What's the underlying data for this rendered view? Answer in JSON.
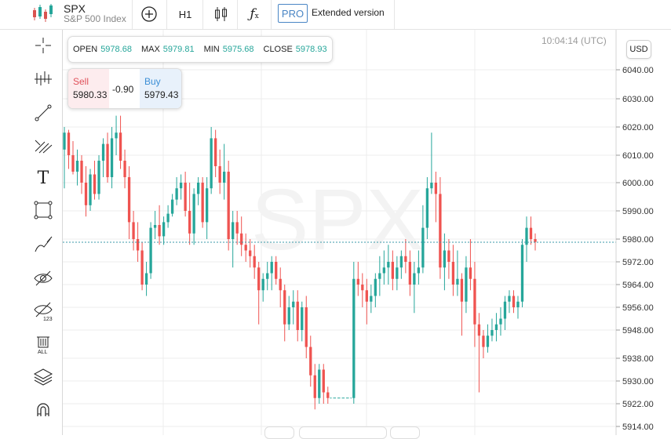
{
  "header": {
    "symbol": "SPX",
    "symbol_name": "S&P 500 Index",
    "interval": "H1",
    "pro_badge": "PRO",
    "extended_label": "Extended version"
  },
  "toolbar": {
    "icons": [
      "add-indicator-icon",
      "chart-type-candles-icon",
      "function-icon"
    ]
  },
  "sidebar": {
    "tools": [
      "crosshair-icon",
      "indicators-icon",
      "trend-line-icon",
      "fib-tools-icon",
      "text-tool-icon",
      "rectangle-icon",
      "brush-icon",
      "hide-drawings-icon",
      "hide-indicators-icon",
      "delete-all-icon",
      "layers-icon",
      "magnet-icon"
    ]
  },
  "ohlc": {
    "open_label": "OPEN",
    "open": "5978.68",
    "max_label": "MAX",
    "max": "5979.81",
    "min_label": "MIN",
    "min": "5975.68",
    "close_label": "CLOSE",
    "close": "5978.93"
  },
  "trade": {
    "sell_label": "Sell",
    "sell_price": "5980.33",
    "spread": "-0.90",
    "buy_label": "Buy",
    "buy_price": "5979.43"
  },
  "time_label": "10:04:14 (UTC)",
  "currency_label": "USD",
  "watermark": "SPX",
  "colors": {
    "up": "#26a69a",
    "down": "#ef5350",
    "grid": "#ececec",
    "accent": "#4a86c5"
  },
  "chart_data": {
    "type": "candlestick",
    "ylim": [
      5910,
      6050
    ],
    "y_ticks": [
      6040,
      6030,
      6020,
      6010,
      6000,
      5990,
      5980,
      5972,
      5964,
      5956,
      5948,
      5938,
      5930,
      5922,
      5914
    ],
    "y_tick_labels": [
      "6040.00",
      "6030.00",
      "6020.00",
      "6010.00",
      "6000.00",
      "5990.00",
      "5980.00",
      "5972.00",
      "5964.00",
      "5956.00",
      "5948.00",
      "5938.00",
      "5930.00",
      "5922.00",
      "5914.00"
    ],
    "current_price": 5978.9,
    "candles": [
      [
        6012,
        6020,
        5998,
        6018
      ],
      [
        6018,
        6019,
        6005,
        6010
      ],
      [
        6010,
        6015,
        6003,
        6004
      ],
      [
        6004,
        6012,
        5999,
        6008
      ],
      [
        6008,
        6010,
        5996,
        6000
      ],
      [
        6000,
        6006,
        5988,
        5992
      ],
      [
        5992,
        6005,
        5990,
        6003
      ],
      [
        6003,
        6008,
        5994,
        5996
      ],
      [
        5996,
        6010,
        5994,
        6008
      ],
      [
        6008,
        6016,
        6002,
        6014
      ],
      [
        6014,
        6018,
        6000,
        6002
      ],
      [
        6002,
        6020,
        5998,
        6016
      ],
      [
        6016,
        6024,
        6010,
        6018
      ],
      [
        6018,
        6024,
        6005,
        6008
      ],
      [
        6008,
        6012,
        5998,
        6002
      ],
      [
        6002,
        6006,
        5980,
        5986
      ],
      [
        5986,
        5990,
        5976,
        5980
      ],
      [
        5980,
        5986,
        5972,
        5976
      ],
      [
        5976,
        5979,
        5962,
        5964
      ],
      [
        5964,
        5972,
        5960,
        5968
      ],
      [
        5968,
        5986,
        5966,
        5984
      ],
      [
        5984,
        5990,
        5980,
        5985
      ],
      [
        5985,
        5992,
        5978,
        5981
      ],
      [
        5981,
        5988,
        5978,
        5986
      ],
      [
        5986,
        5992,
        5984,
        5989
      ],
      [
        5989,
        5996,
        5988,
        5994
      ],
      [
        5994,
        6002,
        5992,
        5998
      ],
      [
        5998,
        6003,
        5994,
        6000
      ],
      [
        6000,
        6004,
        5988,
        5990
      ],
      [
        5990,
        6000,
        5978,
        5982
      ],
      [
        5982,
        5998,
        5978,
        5996
      ],
      [
        5996,
        6002,
        5992,
        6000
      ],
      [
        6000,
        6002,
        5984,
        5986
      ],
      [
        5986,
        6002,
        5980,
        5998
      ],
      [
        5998,
        6020,
        5996,
        6016
      ],
      [
        6016,
        6019,
        6002,
        6006
      ],
      [
        6006,
        6012,
        5996,
        6000
      ],
      [
        6000,
        6014,
        5994,
        6004
      ],
      [
        6004,
        6008,
        5976,
        5980
      ],
      [
        5980,
        5990,
        5970,
        5986
      ],
      [
        5986,
        5990,
        5978,
        5982
      ],
      [
        5982,
        5988,
        5974,
        5978
      ],
      [
        5978,
        5982,
        5972,
        5976
      ],
      [
        5976,
        5980,
        5970,
        5974
      ],
      [
        5974,
        5978,
        5966,
        5970
      ],
      [
        5970,
        5972,
        5950,
        5962
      ],
      [
        5962,
        5968,
        5958,
        5966
      ],
      [
        5966,
        5972,
        5962,
        5968
      ],
      [
        5968,
        5974,
        5962,
        5972
      ],
      [
        5972,
        5974,
        5964,
        5966
      ],
      [
        5966,
        5970,
        5956,
        5962
      ],
      [
        5962,
        5964,
        5944,
        5950
      ],
      [
        5950,
        5960,
        5948,
        5956
      ],
      [
        5956,
        5962,
        5950,
        5958
      ],
      [
        5958,
        5962,
        5944,
        5948
      ],
      [
        5948,
        5958,
        5944,
        5956
      ],
      [
        5956,
        5960,
        5938,
        5942
      ],
      [
        5942,
        5946,
        5928,
        5932
      ],
      [
        5932,
        5936,
        5920,
        5924
      ],
      [
        5924,
        5936,
        5922,
        5934
      ],
      [
        5934,
        5936,
        5922,
        5926
      ],
      [
        5926,
        5928,
        5922,
        5924
      ],
      [
        5924,
        5924,
        5924,
        5924
      ],
      [
        5924,
        5924,
        5924,
        5924
      ],
      [
        5924,
        5924,
        5924,
        5924
      ],
      [
        5924,
        5924,
        5924,
        5924
      ],
      [
        5924,
        5924,
        5924,
        5924
      ],
      [
        5924,
        5972,
        5922,
        5966
      ],
      [
        5966,
        5972,
        5960,
        5964
      ],
      [
        5964,
        5968,
        5956,
        5962
      ],
      [
        5962,
        5966,
        5950,
        5958
      ],
      [
        5958,
        5964,
        5954,
        5960
      ],
      [
        5960,
        5968,
        5956,
        5966
      ],
      [
        5966,
        5974,
        5960,
        5968
      ],
      [
        5968,
        5976,
        5964,
        5970
      ],
      [
        5970,
        5978,
        5964,
        5972
      ],
      [
        5972,
        5976,
        5962,
        5966
      ],
      [
        5966,
        5974,
        5962,
        5970
      ],
      [
        5970,
        5976,
        5966,
        5974
      ],
      [
        5974,
        5980,
        5968,
        5972
      ],
      [
        5972,
        5976,
        5960,
        5964
      ],
      [
        5964,
        5972,
        5954,
        5968
      ],
      [
        5968,
        5976,
        5964,
        5970
      ],
      [
        5970,
        5992,
        5968,
        5984
      ],
      [
        5984,
        6002,
        5980,
        5998
      ],
      [
        5998,
        6018,
        5996,
        6000
      ],
      [
        6000,
        6004,
        5986,
        5996
      ],
      [
        5996,
        6002,
        5966,
        5970
      ],
      [
        5970,
        5982,
        5962,
        5976
      ],
      [
        5976,
        5980,
        5966,
        5972
      ],
      [
        5972,
        5978,
        5960,
        5964
      ],
      [
        5964,
        5976,
        5960,
        5966
      ],
      [
        5966,
        5968,
        5946,
        5958
      ],
      [
        5958,
        5974,
        5954,
        5970
      ],
      [
        5970,
        5980,
        5962,
        5966
      ],
      [
        5966,
        5972,
        5942,
        5950
      ],
      [
        5950,
        5954,
        5926,
        5946
      ],
      [
        5946,
        5948,
        5938,
        5942
      ],
      [
        5942,
        5950,
        5940,
        5946
      ],
      [
        5946,
        5952,
        5944,
        5948
      ],
      [
        5948,
        5954,
        5944,
        5950
      ],
      [
        5950,
        5956,
        5946,
        5952
      ],
      [
        5952,
        5960,
        5948,
        5958
      ],
      [
        5958,
        5962,
        5954,
        5960
      ],
      [
        5960,
        5962,
        5954,
        5956
      ],
      [
        5956,
        5960,
        5952,
        5958
      ],
      [
        5958,
        5980,
        5956,
        5978
      ],
      [
        5978,
        5988,
        5972,
        5984
      ],
      [
        5984,
        5988,
        5978,
        5980
      ],
      [
        5980,
        5982,
        5976,
        5979
      ]
    ]
  }
}
